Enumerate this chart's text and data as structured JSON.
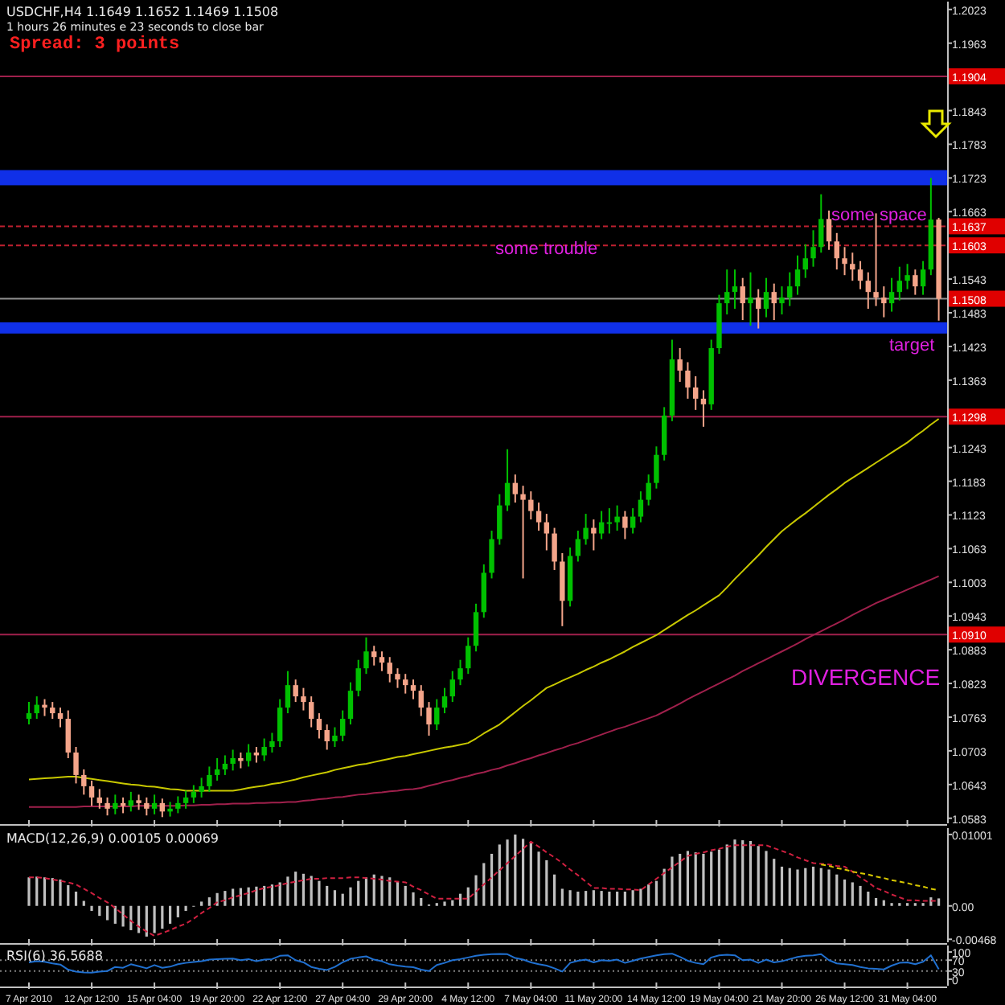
{
  "chart_data": [
    {
      "type": "candlestick",
      "title": "USDCHF,H4  1.1649 1.1652 1.1469 1.1508",
      "subtitle": "1 hours 26 minutes e 23 seconds to close bar",
      "ohlc": [
        [
          1.076,
          1.079,
          1.075,
          1.077
        ],
        [
          1.077,
          1.08,
          1.076,
          1.0785
        ],
        [
          1.0785,
          1.0795,
          1.0765,
          1.078
        ],
        [
          1.078,
          1.079,
          1.076,
          1.077
        ],
        [
          1.077,
          1.078,
          1.0745,
          1.076
        ],
        [
          1.076,
          1.0775,
          1.069,
          1.07
        ],
        [
          1.07,
          1.071,
          1.0645,
          1.066
        ],
        [
          1.066,
          1.067,
          1.0625,
          1.064
        ],
        [
          1.064,
          1.065,
          1.0605,
          1.062
        ],
        [
          1.062,
          1.0635,
          1.06,
          1.061
        ],
        [
          1.061,
          1.062,
          1.0588,
          1.06
        ],
        [
          1.06,
          1.0625,
          1.059,
          1.061
        ],
        [
          1.061,
          1.062,
          1.0592,
          1.0605
        ],
        [
          1.0605,
          1.063,
          1.0595,
          1.0615
        ],
        [
          1.0615,
          1.0625,
          1.0598,
          1.061
        ],
        [
          1.061,
          1.062,
          1.0588,
          1.06
        ],
        [
          1.06,
          1.0625,
          1.059,
          1.061
        ],
        [
          1.061,
          1.0618,
          1.0585,
          1.0595
        ],
        [
          1.0595,
          1.0612,
          1.0586,
          1.06
        ],
        [
          1.06,
          1.0622,
          1.0592,
          1.061
        ],
        [
          1.061,
          1.0632,
          1.06,
          1.062
        ],
        [
          1.062,
          1.0642,
          1.061,
          1.063
        ],
        [
          1.063,
          1.0655,
          1.062,
          1.064
        ],
        [
          1.064,
          1.0675,
          1.063,
          1.066
        ],
        [
          1.066,
          1.069,
          1.065,
          1.067
        ],
        [
          1.067,
          1.0695,
          1.066,
          1.068
        ],
        [
          1.068,
          1.0705,
          1.0668,
          1.069
        ],
        [
          1.069,
          1.07,
          1.0672,
          1.0685
        ],
        [
          1.0685,
          1.0715,
          1.0675,
          1.07
        ],
        [
          1.07,
          1.071,
          1.0682,
          1.0695
        ],
        [
          1.0695,
          1.0725,
          1.0685,
          1.071
        ],
        [
          1.071,
          1.0735,
          1.07,
          1.072
        ],
        [
          1.072,
          1.0795,
          1.071,
          1.078
        ],
        [
          1.078,
          1.0845,
          1.077,
          1.082
        ],
        [
          1.082,
          1.083,
          1.079,
          1.08
        ],
        [
          1.08,
          1.0815,
          1.0775,
          1.079
        ],
        [
          1.079,
          1.08,
          1.0745,
          1.076
        ],
        [
          1.076,
          1.077,
          1.0725,
          1.074
        ],
        [
          1.074,
          1.075,
          1.0705,
          1.072
        ],
        [
          1.072,
          1.0745,
          1.071,
          1.073
        ],
        [
          1.073,
          1.0775,
          1.072,
          1.076
        ],
        [
          1.076,
          1.0825,
          1.075,
          1.081
        ],
        [
          1.081,
          1.0865,
          1.08,
          1.085
        ],
        [
          1.085,
          1.0905,
          1.084,
          1.088
        ],
        [
          1.088,
          1.089,
          1.0855,
          1.087
        ],
        [
          1.087,
          1.088,
          1.0845,
          1.086
        ],
        [
          1.086,
          1.087,
          1.0825,
          1.084
        ],
        [
          1.084,
          1.085,
          1.0815,
          1.083
        ],
        [
          1.083,
          1.084,
          1.0805,
          1.082
        ],
        [
          1.082,
          1.083,
          1.0795,
          1.081
        ],
        [
          1.081,
          1.082,
          1.0765,
          1.078
        ],
        [
          1.078,
          1.079,
          1.073,
          1.075
        ],
        [
          1.075,
          1.0795,
          1.074,
          1.078
        ],
        [
          1.078,
          1.0815,
          1.077,
          1.08
        ],
        [
          1.08,
          1.0845,
          1.079,
          1.083
        ],
        [
          1.083,
          1.0865,
          1.082,
          1.085
        ],
        [
          1.085,
          1.0905,
          1.084,
          1.089
        ],
        [
          1.089,
          1.0965,
          1.088,
          1.095
        ],
        [
          1.095,
          1.1035,
          1.094,
          1.102
        ],
        [
          1.102,
          1.1095,
          1.101,
          1.108
        ],
        [
          1.108,
          1.116,
          1.107,
          1.114
        ],
        [
          1.114,
          1.124,
          1.113,
          1.118
        ],
        [
          1.118,
          1.1195,
          1.1145,
          1.116
        ],
        [
          1.116,
          1.1175,
          1.101,
          1.115
        ],
        [
          1.115,
          1.1165,
          1.1115,
          1.113
        ],
        [
          1.113,
          1.1145,
          1.1095,
          1.111
        ],
        [
          1.111,
          1.1125,
          1.106,
          1.109
        ],
        [
          1.109,
          1.11,
          1.1025,
          1.104
        ],
        [
          1.104,
          1.1055,
          1.0925,
          1.097
        ],
        [
          1.097,
          1.1065,
          1.096,
          1.105
        ],
        [
          1.105,
          1.1095,
          1.104,
          1.108
        ],
        [
          1.108,
          1.1125,
          1.107,
          1.11
        ],
        [
          1.11,
          1.1115,
          1.106,
          1.109
        ],
        [
          1.109,
          1.113,
          1.108,
          1.111
        ],
        [
          1.111,
          1.1135,
          1.109,
          1.111
        ],
        [
          1.111,
          1.114,
          1.1095,
          1.112
        ],
        [
          1.112,
          1.113,
          1.108,
          1.11
        ],
        [
          1.11,
          1.1135,
          1.109,
          1.112
        ],
        [
          1.112,
          1.1165,
          1.111,
          1.115
        ],
        [
          1.115,
          1.1195,
          1.114,
          1.118
        ],
        [
          1.118,
          1.1245,
          1.117,
          1.123
        ],
        [
          1.123,
          1.1315,
          1.122,
          1.13
        ],
        [
          1.13,
          1.1435,
          1.129,
          1.14
        ],
        [
          1.14,
          1.142,
          1.136,
          1.138
        ],
        [
          1.138,
          1.1395,
          1.133,
          1.135
        ],
        [
          1.135,
          1.137,
          1.131,
          1.133
        ],
        [
          1.133,
          1.1345,
          1.128,
          1.132
        ],
        [
          1.132,
          1.1435,
          1.131,
          1.142
        ],
        [
          1.142,
          1.1515,
          1.141,
          1.15
        ],
        [
          1.15,
          1.156,
          1.148,
          1.152
        ],
        [
          1.152,
          1.156,
          1.149,
          1.153
        ],
        [
          1.153,
          1.1545,
          1.147,
          1.15
        ],
        [
          1.15,
          1.1555,
          1.146,
          1.151
        ],
        [
          1.151,
          1.1525,
          1.1455,
          1.149
        ],
        [
          1.149,
          1.1545,
          1.1475,
          1.152
        ],
        [
          1.152,
          1.1535,
          1.147,
          1.15
        ],
        [
          1.15,
          1.153,
          1.148,
          1.151
        ],
        [
          1.151,
          1.1555,
          1.1495,
          1.153
        ],
        [
          1.153,
          1.1585,
          1.1515,
          1.156
        ],
        [
          1.156,
          1.1605,
          1.1545,
          1.158
        ],
        [
          1.158,
          1.163,
          1.1565,
          1.16
        ],
        [
          1.16,
          1.1694,
          1.159,
          1.165
        ],
        [
          1.165,
          1.1665,
          1.1595,
          1.161
        ],
        [
          1.161,
          1.1625,
          1.156,
          1.158
        ],
        [
          1.158,
          1.16,
          1.155,
          1.157
        ],
        [
          1.157,
          1.159,
          1.154,
          1.156
        ],
        [
          1.156,
          1.1575,
          1.1525,
          1.154
        ],
        [
          1.154,
          1.1555,
          1.149,
          1.152
        ],
        [
          1.152,
          1.166,
          1.1495,
          1.151
        ],
        [
          1.151,
          1.153,
          1.1475,
          1.15
        ],
        [
          1.15,
          1.1545,
          1.1485,
          1.152
        ],
        [
          1.152,
          1.1565,
          1.1505,
          1.154
        ],
        [
          1.154,
          1.157,
          1.1525,
          1.155
        ],
        [
          1.155,
          1.156,
          1.1515,
          1.153
        ],
        [
          1.153,
          1.1575,
          1.1515,
          1.156
        ],
        [
          1.156,
          1.1723,
          1.155,
          1.1649
        ],
        [
          1.1649,
          1.1652,
          1.1469,
          1.1508
        ]
      ],
      "colors": [
        "#00c000",
        "#00c000",
        "#f4a58a",
        "#f4a58a",
        "#f4a58a",
        "#f4a58a",
        "#f4a58a",
        "#f4a58a",
        "#f4a58a",
        "#f4a58a",
        "#f4a58a",
        "#00c000",
        "#f4a58a",
        "#00c000",
        "#f4a58a",
        "#f4a58a",
        "#00c000",
        "#f4a58a",
        "#00c000",
        "#00c000",
        "#00c000",
        "#00c000",
        "#00c000",
        "#00c000",
        "#00c000",
        "#00c000",
        "#00c000",
        "#f4a58a",
        "#00c000",
        "#f4a58a",
        "#00c000",
        "#00c000",
        "#00c000",
        "#00c000",
        "#f4a58a",
        "#f4a58a",
        "#f4a58a",
        "#f4a58a",
        "#f4a58a",
        "#00c000",
        "#00c000",
        "#00c000",
        "#00c000",
        "#00c000",
        "#f4a58a",
        "#f4a58a",
        "#f4a58a",
        "#f4a58a",
        "#f4a58a",
        "#f4a58a",
        "#f4a58a",
        "#f4a58a",
        "#00c000",
        "#00c000",
        "#00c000",
        "#00c000",
        "#00c000",
        "#00c000",
        "#00c000",
        "#00c000",
        "#00c000",
        "#00c000",
        "#f4a58a",
        "#f4a58a",
        "#f4a58a",
        "#f4a58a",
        "#f4a58a",
        "#f4a58a",
        "#f4a58a",
        "#00c000",
        "#00c000",
        "#00c000",
        "#f4a58a",
        "#00c000",
        "#00c000",
        "#00c000",
        "#f4a58a",
        "#00c000",
        "#00c000",
        "#00c000",
        "#00c000",
        "#00c000",
        "#00c000",
        "#f4a58a",
        "#f4a58a",
        "#f4a58a",
        "#f4a58a",
        "#00c000",
        "#00c000",
        "#00c000",
        "#00c000",
        "#f4a58a",
        "#00c000",
        "#f4a58a",
        "#00c000",
        "#f4a58a",
        "#00c000",
        "#00c000",
        "#00c000",
        "#00c000",
        "#00c000",
        "#00c000",
        "#f4a58a",
        "#f4a58a",
        "#f4a58a",
        "#f4a58a",
        "#f4a58a",
        "#f4a58a",
        "#f4a58a",
        "#f4a58a",
        "#00c000",
        "#00c000",
        "#00c000",
        "#f4a58a",
        "#00c000",
        "#00c000",
        "#f4a58a"
      ],
      "series": [
        {
          "type": "line",
          "color": "#c8c800",
          "values": [
            1.0652,
            1.0653,
            1.0654,
            1.0655,
            1.0656,
            1.0657,
            1.0657,
            1.0655,
            1.0653,
            1.0651,
            1.0649,
            1.0647,
            1.0645,
            1.0643,
            1.0642,
            1.064,
            1.0639,
            1.0637,
            1.0635,
            1.0634,
            1.0632,
            1.0632,
            1.0632,
            1.0632,
            1.0632,
            1.0632,
            1.0632,
            1.0634,
            1.0637,
            1.0639,
            1.0641,
            1.0644,
            1.0646,
            1.0649,
            1.0652,
            1.0656,
            1.0659,
            1.0662,
            1.0665,
            1.0669,
            1.0672,
            1.0675,
            1.0678,
            1.068,
            1.0683,
            1.0686,
            1.0689,
            1.0692,
            1.0694,
            1.0697,
            1.07,
            1.0703,
            1.0706,
            1.0709,
            1.0711,
            1.0714,
            1.0717,
            1.0725,
            1.0734,
            1.0742,
            1.075,
            1.0761,
            1.0772,
            1.0783,
            1.0793,
            1.0804,
            1.0815,
            1.0821,
            1.0828,
            1.0834,
            1.084,
            1.0847,
            1.0853,
            1.086,
            1.0866,
            1.0873,
            1.088,
            1.0888,
            1.0895,
            1.0902,
            1.0909,
            1.0918,
            1.0927,
            1.0936,
            1.0945,
            1.0953,
            1.0962,
            1.0971,
            1.098,
            1.0994,
            1.1009,
            1.1023,
            1.1037,
            1.1051,
            1.1066,
            1.108,
            1.1094,
            1.1105,
            1.1116,
            1.1126,
            1.1137,
            1.1148,
            1.1159,
            1.1169,
            1.118,
            1.1189,
            1.1198,
            1.1207,
            1.1216,
            1.1225,
            1.1234,
            1.1243,
            1.1252,
            1.1263,
            1.1273,
            1.1284,
            1.1294
          ]
        },
        {
          "type": "line",
          "color": "#a0204c",
          "values": [
            1.0603,
            1.0603,
            1.0603,
            1.0603,
            1.0603,
            1.0603,
            1.0603,
            1.0604,
            1.0604,
            1.0604,
            1.0604,
            1.0604,
            1.0604,
            1.0604,
            1.0605,
            1.0605,
            1.0605,
            1.0605,
            1.0605,
            1.0605,
            1.0606,
            1.0606,
            1.0607,
            1.0607,
            1.0608,
            1.0608,
            1.0609,
            1.0609,
            1.0609,
            1.061,
            1.061,
            1.0611,
            1.0611,
            1.0612,
            1.0612,
            1.0614,
            1.0615,
            1.0617,
            1.0618,
            1.062,
            1.0621,
            1.0623,
            1.0625,
            1.0626,
            1.0628,
            1.0629,
            1.0631,
            1.0632,
            1.0634,
            1.0635,
            1.0637,
            1.0641,
            1.0644,
            1.0648,
            1.0651,
            1.0655,
            1.0658,
            1.0662,
            1.0665,
            1.0669,
            1.0672,
            1.0677,
            1.0681,
            1.0686,
            1.069,
            1.0695,
            1.0699,
            1.0704,
            1.0708,
            1.0713,
            1.0717,
            1.0722,
            1.0727,
            1.0732,
            1.0737,
            1.0742,
            1.0746,
            1.0751,
            1.0756,
            1.0761,
            1.0766,
            1.0773,
            1.078,
            1.0787,
            1.0795,
            1.0802,
            1.0809,
            1.0816,
            1.0823,
            1.083,
            1.0837,
            1.0845,
            1.0852,
            1.0859,
            1.0866,
            1.0873,
            1.088,
            1.0887,
            1.0894,
            1.0902,
            1.0909,
            1.0916,
            1.0923,
            1.093,
            1.0937,
            1.0945,
            1.0952,
            1.0959,
            1.0966,
            1.0972,
            1.0978,
            1.0984,
            1.099,
            1.0996,
            1.1002,
            1.1008,
            1.1014
          ]
        }
      ],
      "ylim": [
        1.0574,
        1.2037
      ],
      "yticks": [
        1.2023,
        1.1963,
        {
          "value": 1.1903,
          "label": null
        },
        1.1843,
        1.1783,
        1.1723,
        1.1663,
        {
          "value": 1.1603,
          "label": null
        },
        1.1543,
        1.1483,
        1.1423,
        1.1363,
        {
          "value": 1.1303,
          "label": null
        },
        1.1243,
        1.1183,
        1.1123,
        1.1063,
        1.1003,
        1.0943,
        1.0883,
        1.0823,
        1.0763,
        1.0703,
        1.0643,
        1.0583
      ],
      "ref_lines": [
        {
          "axis": "y",
          "value": 1.1904,
          "label": "1.1904",
          "color": "#a0204c",
          "line_style": "solid"
        },
        {
          "axis": "y",
          "value": 1.1637,
          "label": "1.1637",
          "color": "#c02030",
          "line_style": "dashed"
        },
        {
          "axis": "y",
          "value": 1.1603,
          "label": "1.1603",
          "color": "#c02030",
          "line_style": "dashed"
        },
        {
          "axis": "y",
          "value": 1.1508,
          "label": "1.1508",
          "color": "#909090",
          "line_style": "solid"
        },
        {
          "axis": "y",
          "value": 1.1298,
          "label": "1.1298",
          "color": "#a0204c",
          "line_style": "solid"
        },
        {
          "axis": "y",
          "value": 1.091,
          "label": "1.0910",
          "color": "#a0204c",
          "line_style": "solid"
        }
      ],
      "bands": [
        {
          "axis": "y",
          "from": 1.171,
          "to": 1.1737,
          "color": "#1030e8"
        },
        {
          "axis": "y",
          "from": 1.1446,
          "to": 1.1466,
          "color": "#1030e8"
        }
      ],
      "annotations": [
        "Spread: 3 points",
        "some trouble",
        "some space",
        "target",
        "DIVERGENCE"
      ],
      "tick_labels": "y"
    },
    {
      "type": "bar",
      "title": "MACD(12,26,9) 0.00105 0.00069",
      "series": [
        {
          "type": "bar",
          "color": "#c0c0c0",
          "values": [
            0.004,
            0.0041,
            0.004,
            0.0039,
            0.0037,
            0.0029,
            0.002,
            0.0007,
            -0.0007,
            -0.0014,
            -0.002,
            -0.0025,
            -0.0029,
            -0.0034,
            -0.0038,
            -0.0043,
            -0.0038,
            -0.0032,
            -0.0025,
            -0.0016,
            -0.0007,
            0.0,
            0.0006,
            0.0012,
            0.0018,
            0.0021,
            0.0024,
            0.0025,
            0.0026,
            0.0027,
            0.0028,
            0.003,
            0.0033,
            0.0041,
            0.0048,
            0.0045,
            0.0042,
            0.0035,
            0.0028,
            0.0022,
            0.0017,
            0.0026,
            0.0035,
            0.004,
            0.0044,
            0.0042,
            0.004,
            0.0034,
            0.0028,
            0.0019,
            0.0011,
            0.0002,
            0.0004,
            0.0006,
            0.0008,
            0.0017,
            0.0026,
            0.0043,
            0.006,
            0.0073,
            0.0086,
            0.0093,
            0.01,
            0.0094,
            0.0088,
            0.0076,
            0.0064,
            0.0044,
            0.0024,
            0.0022,
            0.002,
            0.0021,
            0.0022,
            0.0021,
            0.002,
            0.002,
            0.002,
            0.0022,
            0.0024,
            0.003,
            0.0035,
            0.0052,
            0.0069,
            0.0073,
            0.0077,
            0.0075,
            0.0073,
            0.0076,
            0.0079,
            0.0086,
            0.0093,
            0.0092,
            0.0091,
            0.0084,
            0.0077,
            0.0066,
            0.0055,
            0.0053,
            0.0051,
            0.0053,
            0.0055,
            0.0053,
            0.0051,
            0.0044,
            0.0037,
            0.0033,
            0.0028,
            0.002,
            0.0011,
            0.0008,
            0.0004,
            0.0004,
            0.0004,
            0.0004,
            0.0004,
            0.0012,
            0.00105
          ]
        },
        {
          "type": "line",
          "color": "#d02040",
          "line_style": "dashed",
          "values": [
            0.004,
            0.004,
            0.0039,
            0.0037,
            0.0035,
            0.0033,
            0.003,
            0.0024,
            0.0018,
            0.0011,
            0.0005,
            -0.0003,
            -0.0012,
            -0.0021,
            -0.0029,
            -0.0036,
            -0.0042,
            -0.0038,
            -0.0034,
            -0.0029,
            -0.0025,
            -0.0018,
            -0.001,
            -0.0003,
            0.0005,
            0.0008,
            0.0012,
            0.0015,
            0.0018,
            0.0022,
            0.0025,
            0.0027,
            0.0029,
            0.0032,
            0.0034,
            0.0036,
            0.0038,
            0.0038,
            0.0039,
            0.0039,
            0.0039,
            0.004,
            0.004,
            0.0039,
            0.0038,
            0.0037,
            0.0035,
            0.0034,
            0.0033,
            0.0027,
            0.0022,
            0.0016,
            0.001,
            0.001,
            0.001,
            0.001,
            0.001,
            0.002,
            0.003,
            0.004,
            0.005,
            0.006,
            0.007,
            0.008,
            0.009,
            0.0083,
            0.0075,
            0.0068,
            0.006,
            0.0051,
            0.0043,
            0.0034,
            0.0025,
            0.0025,
            0.0024,
            0.0024,
            0.0023,
            0.0023,
            0.0022,
            0.003,
            0.0038,
            0.0046,
            0.0054,
            0.0062,
            0.007,
            0.0073,
            0.0075,
            0.0078,
            0.008,
            0.0083,
            0.0085,
            0.0085,
            0.0085,
            0.0085,
            0.0085,
            0.0081,
            0.0077,
            0.0073,
            0.0068,
            0.0064,
            0.006,
            0.0059,
            0.0058,
            0.0056,
            0.0055,
            0.0048,
            0.004,
            0.0033,
            0.0025,
            0.0021,
            0.0016,
            0.0012,
            0.0008,
            0.0008,
            0.0007,
            0.0007,
            0.00069
          ]
        },
        {
          "type": "line",
          "color": "#d8c800",
          "line_style": "dashed",
          "values": [
            null,
            null,
            null,
            null,
            null,
            null,
            null,
            null,
            null,
            null,
            null,
            null,
            null,
            null,
            null,
            null,
            null,
            null,
            null,
            null,
            null,
            null,
            null,
            null,
            null,
            null,
            null,
            null,
            null,
            null,
            null,
            null,
            null,
            null,
            null,
            null,
            null,
            null,
            null,
            null,
            null,
            null,
            null,
            null,
            null,
            null,
            null,
            null,
            null,
            null,
            null,
            null,
            null,
            null,
            null,
            null,
            null,
            null,
            null,
            null,
            null,
            null,
            null,
            null,
            null,
            null,
            null,
            null,
            null,
            null,
            null,
            null,
            null,
            null,
            null,
            null,
            null,
            null,
            null,
            null,
            null,
            null,
            null,
            null,
            null,
            null,
            null,
            null,
            null,
            null,
            null,
            null,
            null,
            null,
            null,
            null,
            null,
            null,
            null,
            null,
            null,
            0.0058,
            0.0056,
            0.0053,
            0.0051,
            0.0048,
            0.0046,
            0.0044,
            0.0041,
            0.0039,
            0.0036,
            0.0034,
            0.0032,
            0.0029,
            0.0027,
            0.0024,
            0.0022
          ]
        }
      ],
      "ylim": [
        -0.0051,
        0.0109
      ],
      "yticks": [
        0.01001,
        {
          "value": 0,
          "label": "0.00"
        },
        -0.00468
      ],
      "tick_labels": "y"
    },
    {
      "type": "line",
      "title": "RSI(6) 36.5688",
      "categories": [
        "7 Apr 2010",
        null,
        null,
        null,
        null,
        null,
        null,
        null,
        "12 Apr 12:00",
        null,
        null,
        null,
        null,
        null,
        null,
        null,
        "15 Apr 04:00",
        null,
        null,
        null,
        null,
        null,
        null,
        null,
        "19 Apr 20:00",
        null,
        null,
        null,
        null,
        null,
        null,
        null,
        "22 Apr 12:00",
        null,
        null,
        null,
        null,
        null,
        null,
        null,
        "27 Apr 04:00",
        null,
        null,
        null,
        null,
        null,
        null,
        null,
        "29 Apr 20:00",
        null,
        null,
        null,
        null,
        null,
        null,
        null,
        "4 May 12:00",
        null,
        null,
        null,
        null,
        null,
        null,
        null,
        "7 May 04:00",
        null,
        null,
        null,
        null,
        null,
        null,
        null,
        "11 May 20:00",
        null,
        null,
        null,
        null,
        null,
        null,
        null,
        "14 May 12:00",
        null,
        null,
        null,
        null,
        null,
        null,
        null,
        "19 May 04:00",
        null,
        null,
        null,
        null,
        null,
        null,
        null,
        "21 May 20:00",
        null,
        null,
        null,
        null,
        null,
        null,
        null,
        "26 May 12:00",
        null,
        null,
        null,
        null,
        null,
        null,
        null,
        "31 May 04:00",
        null,
        null,
        null,
        null
      ],
      "series": [
        {
          "color": "#2070d0",
          "values": [
            62,
            66,
            64,
            58,
            54,
            35,
            28,
            25,
            24,
            28,
            30,
            45,
            42,
            55,
            48,
            40,
            52,
            42,
            46,
            55,
            60,
            63,
            66,
            72,
            74,
            75,
            76,
            70,
            74,
            66,
            72,
            74,
            86,
            88,
            70,
            62,
            45,
            38,
            34,
            45,
            62,
            75,
            80,
            84,
            72,
            66,
            55,
            50,
            46,
            44,
            35,
            30,
            52,
            60,
            70,
            74,
            80,
            86,
            90,
            92,
            93,
            92,
            78,
            72,
            62,
            55,
            50,
            40,
            28,
            60,
            68,
            72,
            62,
            70,
            68,
            72,
            60,
            68,
            76,
            82,
            88,
            92,
            94,
            82,
            68,
            60,
            55,
            80,
            88,
            90,
            88,
            70,
            72,
            60,
            72,
            62,
            66,
            74,
            82,
            86,
            88,
            92,
            70,
            58,
            55,
            52,
            45,
            40,
            38,
            36,
            50,
            60,
            62,
            55,
            64,
            88,
            36.5688
          ]
        }
      ],
      "ylim": [
        -24,
        124
      ],
      "yticks": [
        100,
        70,
        30,
        0
      ],
      "ref_lines": [
        {
          "axis": "y",
          "value": 70,
          "color": "#808080",
          "line_style": "dotted"
        },
        {
          "axis": "y",
          "value": 30,
          "color": "#808080",
          "line_style": "dotted"
        }
      ]
    }
  ]
}
